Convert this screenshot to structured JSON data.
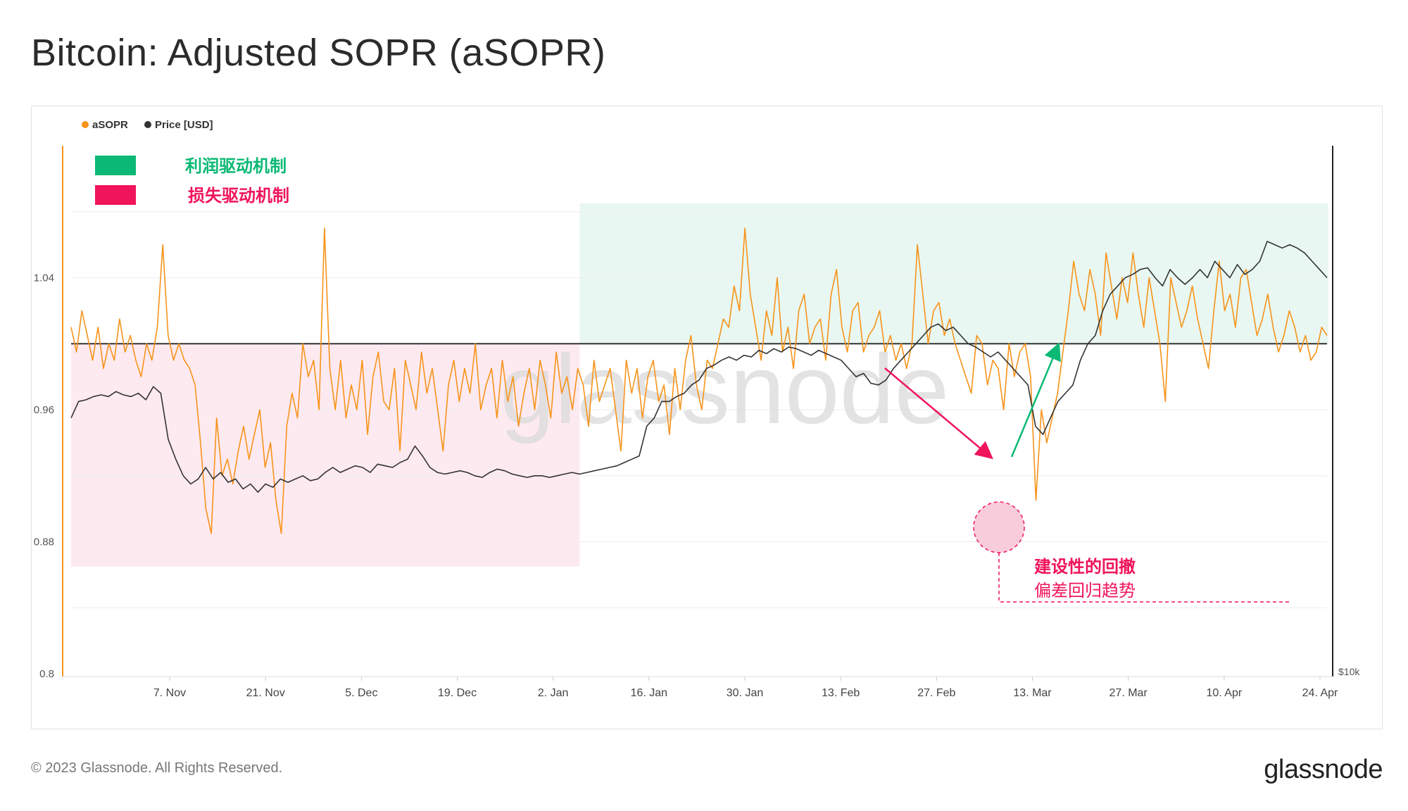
{
  "title": "Bitcoin: Adjusted SOPR (aSOPR)",
  "footer": "© 2023 Glassnode. All Rights Reserved.",
  "brand": "glassnode",
  "watermark": "glassnode",
  "colors": {
    "asopr": "#f7931a",
    "price": "#333333",
    "profit": "#0bb974",
    "loss": "#f0145a",
    "profit_fill": "#e8f7f1",
    "loss_fill": "#fdeaf0",
    "axis_left": "#f7931a"
  },
  "legend": {
    "items": [
      {
        "label": "aSOPR",
        "color": "#f7931a"
      },
      {
        "label": "Price [USD]",
        "color": "#333333"
      }
    ]
  },
  "regime_legend": {
    "profit": "利润驱动机制",
    "loss": "损失驱动机制"
  },
  "annotation": {
    "line1": "建设性的回撤",
    "line2": "偏差回归趋势"
  },
  "chart_data": {
    "type": "line",
    "y_left": {
      "ticks": [
        0.8,
        0.88,
        0.96,
        1.04
      ],
      "labels": [
        "0.8",
        "0.88",
        "0.96",
        "1.04"
      ],
      "range": [
        0.8,
        1.12
      ]
    },
    "y_right": {
      "labels": [
        "$10k"
      ]
    },
    "x_labels": [
      "7. Nov",
      "21. Nov",
      "5. Dec",
      "19. Dec",
      "2. Jan",
      "16. Jan",
      "30. Jan",
      "13. Feb",
      "27. Feb",
      "13. Mar",
      "27. Mar",
      "10. Apr",
      "24. Apr"
    ],
    "baseline": 1.0,
    "series": [
      {
        "name": "aSOPR",
        "values": [
          1.01,
          0.995,
          1.02,
          1.005,
          0.99,
          1.01,
          0.985,
          1.0,
          0.99,
          1.015,
          0.995,
          1.005,
          0.99,
          0.98,
          1.0,
          0.99,
          1.01,
          1.06,
          1.005,
          0.99,
          1.0,
          0.99,
          0.985,
          0.975,
          0.94,
          0.9,
          0.885,
          0.955,
          0.92,
          0.93,
          0.915,
          0.935,
          0.95,
          0.93,
          0.945,
          0.96,
          0.925,
          0.94,
          0.905,
          0.885,
          0.95,
          0.97,
          0.955,
          1.0,
          0.98,
          0.99,
          0.96,
          1.07,
          0.985,
          0.96,
          0.99,
          0.955,
          0.975,
          0.96,
          0.99,
          0.945,
          0.98,
          0.995,
          0.965,
          0.96,
          0.985,
          0.935,
          0.99,
          0.975,
          0.96,
          0.995,
          0.97,
          0.985,
          0.96,
          0.935,
          0.975,
          0.99,
          0.965,
          0.985,
          0.97,
          1.0,
          0.96,
          0.975,
          0.985,
          0.955,
          0.99,
          0.965,
          0.98,
          0.95,
          0.97,
          0.985,
          0.96,
          0.99,
          0.975,
          0.955,
          0.995,
          0.97,
          0.98,
          0.96,
          0.985,
          0.975,
          0.95,
          0.99,
          0.965,
          0.975,
          0.985,
          0.96,
          0.935,
          0.99,
          0.97,
          0.985,
          0.955,
          0.98,
          0.99,
          0.965,
          0.975,
          0.945,
          0.985,
          0.96,
          0.99,
          1.005,
          0.975,
          0.96,
          0.99,
          0.985,
          1.0,
          1.015,
          1.01,
          1.035,
          1.02,
          1.07,
          1.03,
          1.01,
          0.99,
          1.02,
          1.005,
          1.04,
          0.995,
          1.01,
          0.985,
          1.02,
          1.03,
          1.0,
          1.01,
          1.015,
          0.99,
          1.03,
          1.045,
          1.01,
          0.995,
          1.02,
          1.025,
          0.995,
          1.005,
          1.01,
          1.02,
          0.995,
          1.005,
          0.99,
          1.0,
          0.985,
          1.0,
          1.06,
          1.03,
          1.0,
          1.02,
          1.025,
          1.005,
          1.015,
          1.0,
          0.99,
          0.98,
          0.97,
          1.005,
          1.0,
          0.975,
          0.99,
          0.985,
          0.96,
          1.0,
          0.98,
          0.995,
          1.0,
          0.98,
          0.905,
          0.96,
          0.94,
          0.955,
          0.97,
          0.995,
          1.02,
          1.05,
          1.03,
          1.02,
          1.045,
          1.03,
          1.005,
          1.055,
          1.035,
          1.015,
          1.04,
          1.025,
          1.055,
          1.03,
          1.01,
          1.04,
          1.02,
          1.0,
          0.965,
          1.04,
          1.025,
          1.01,
          1.02,
          1.035,
          1.015,
          1.0,
          0.985,
          1.02,
          1.05,
          1.02,
          1.03,
          1.01,
          1.04,
          1.045,
          1.025,
          1.005,
          1.015,
          1.03,
          1.01,
          0.995,
          1.005,
          1.02,
          1.01,
          0.995,
          1.005,
          0.99,
          0.995,
          1.01,
          1.005
        ]
      },
      {
        "name": "Price [USD]",
        "values": [
          0.955,
          0.965,
          0.966,
          0.968,
          0.969,
          0.968,
          0.971,
          0.969,
          0.968,
          0.97,
          0.966,
          0.974,
          0.97,
          0.942,
          0.93,
          0.92,
          0.915,
          0.918,
          0.925,
          0.918,
          0.922,
          0.916,
          0.918,
          0.912,
          0.915,
          0.91,
          0.915,
          0.913,
          0.918,
          0.916,
          0.918,
          0.92,
          0.917,
          0.918,
          0.922,
          0.925,
          0.922,
          0.924,
          0.926,
          0.925,
          0.922,
          0.927,
          0.926,
          0.925,
          0.928,
          0.93,
          0.938,
          0.932,
          0.925,
          0.922,
          0.921,
          0.922,
          0.923,
          0.922,
          0.92,
          0.919,
          0.922,
          0.924,
          0.923,
          0.921,
          0.92,
          0.919,
          0.92,
          0.92,
          0.919,
          0.92,
          0.921,
          0.922,
          0.921,
          0.922,
          0.923,
          0.924,
          0.925,
          0.926,
          0.928,
          0.93,
          0.932,
          0.95,
          0.955,
          0.965,
          0.965,
          0.968,
          0.97,
          0.975,
          0.978,
          0.985,
          0.987,
          0.99,
          0.992,
          0.99,
          0.993,
          0.992,
          0.996,
          0.994,
          0.997,
          0.995,
          0.998,
          0.997,
          0.995,
          0.993,
          0.996,
          0.994,
          0.992,
          0.99,
          0.985,
          0.98,
          0.982,
          0.976,
          0.975,
          0.978,
          0.985,
          0.99,
          0.995,
          1.0,
          1.005,
          1.01,
          1.012,
          1.008,
          1.01,
          1.005,
          1.0,
          0.998,
          0.995,
          0.992,
          0.995,
          0.99,
          0.985,
          0.98,
          0.975,
          0.95,
          0.945,
          0.955,
          0.965,
          0.97,
          0.975,
          0.99,
          1.0,
          1.005,
          1.02,
          1.03,
          1.035,
          1.04,
          1.042,
          1.045,
          1.046,
          1.04,
          1.035,
          1.045,
          1.04,
          1.036,
          1.04,
          1.045,
          1.04,
          1.05,
          1.045,
          1.04,
          1.048,
          1.042,
          1.045,
          1.05,
          1.062,
          1.06,
          1.058,
          1.06,
          1.058,
          1.055,
          1.05,
          1.045,
          1.04
        ]
      }
    ]
  }
}
